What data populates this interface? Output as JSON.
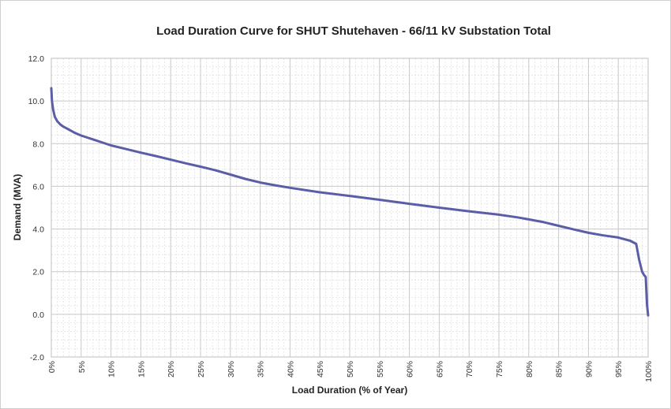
{
  "chart_data": {
    "type": "line",
    "title": "Load Duration Curve for SHUT Shutehaven - 66/11 kV Substation Total",
    "xlabel": "Load Duration (% of Year)",
    "ylabel": "Demand (MVA)",
    "xlim": [
      0,
      100
    ],
    "ylim": [
      -2.0,
      12.0
    ],
    "grid": true,
    "legend": "none",
    "x_ticks": [
      "0%",
      "5%",
      "10%",
      "15%",
      "20%",
      "25%",
      "30%",
      "35%",
      "40%",
      "45%",
      "50%",
      "55%",
      "60%",
      "65%",
      "70%",
      "75%",
      "80%",
      "85%",
      "90%",
      "95%",
      "100%"
    ],
    "y_ticks": [
      "-2.0",
      "0.0",
      "2.0",
      "4.0",
      "6.0",
      "8.0",
      "10.0",
      "12.0"
    ],
    "series": [
      {
        "color": "#5b5ea6",
        "x": [
          0,
          0.1,
          0.3,
          0.6,
          1,
          1.5,
          2,
          3,
          4,
          5,
          7.5,
          10,
          12.5,
          15,
          17.5,
          20,
          22.5,
          25,
          27.5,
          30,
          32.5,
          35,
          37.5,
          40,
          45,
          50,
          55,
          60,
          65,
          70,
          75,
          78,
          80,
          82.5,
          85,
          87.5,
          90,
          92.5,
          95,
          97,
          98,
          98.5,
          99,
          99.3,
          99.6,
          99.8,
          100
        ],
        "y": [
          10.6,
          10.0,
          9.6,
          9.25,
          9.05,
          8.9,
          8.8,
          8.65,
          8.5,
          8.38,
          8.15,
          7.92,
          7.75,
          7.58,
          7.42,
          7.25,
          7.08,
          6.92,
          6.75,
          6.55,
          6.35,
          6.18,
          6.05,
          5.93,
          5.72,
          5.55,
          5.37,
          5.18,
          5.0,
          4.83,
          4.67,
          4.55,
          4.45,
          4.32,
          4.15,
          3.98,
          3.82,
          3.7,
          3.6,
          3.45,
          3.3,
          2.55,
          2.0,
          1.85,
          1.75,
          0.5,
          -0.05
        ]
      }
    ]
  }
}
